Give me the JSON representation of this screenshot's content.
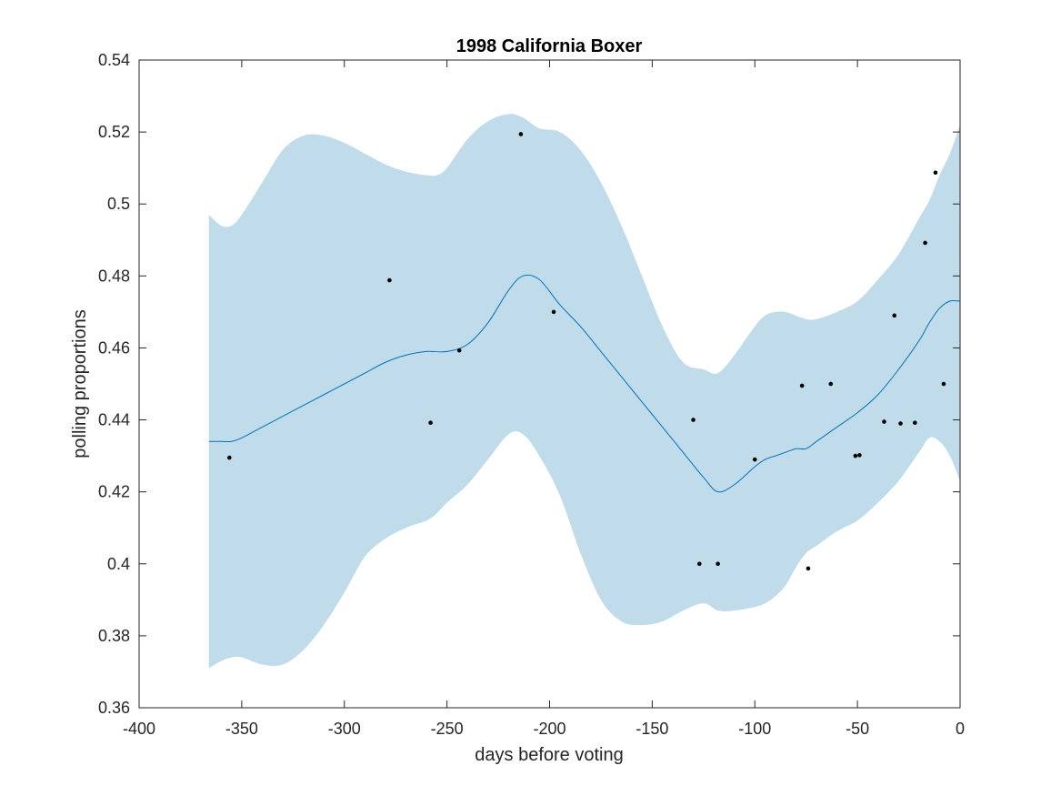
{
  "chart_data": {
    "type": "line",
    "title": "1998 California Boxer",
    "xlabel": "days before voting",
    "ylabel": "polling proportions",
    "xlim": [
      -400,
      0
    ],
    "ylim": [
      0.36,
      0.54
    ],
    "xticks": [
      -400,
      -350,
      -300,
      -250,
      -200,
      -150,
      -100,
      -50,
      0
    ],
    "xtick_labels": [
      "-400",
      "-350",
      "-300",
      "-250",
      "-200",
      "-150",
      "-100",
      "-50",
      "0"
    ],
    "yticks": [
      0.36,
      0.38,
      0.4,
      0.42,
      0.44,
      0.46,
      0.48,
      0.5,
      0.52,
      0.54
    ],
    "ytick_labels": [
      "0.36",
      "0.38",
      "0.4",
      "0.42",
      "0.44",
      "0.46",
      "0.48",
      "0.5",
      "0.52",
      "0.54"
    ],
    "grid": false,
    "colors": {
      "band": "#c0dcea",
      "mean_line": "#0072bd",
      "points": "#000000",
      "axes": "#262626"
    },
    "series": [
      {
        "kind": "confidence_band",
        "x": [
          -366,
          -360,
          -355,
          -350,
          -340,
          -330,
          -320,
          -310,
          -300,
          -290,
          -280,
          -270,
          -260,
          -255,
          -250,
          -240,
          -230,
          -220,
          -213,
          -205,
          -195,
          -185,
          -175,
          -165,
          -155,
          -145,
          -135,
          -125,
          -118,
          -110,
          -100,
          -95,
          -90,
          -85,
          -80,
          -75,
          -70,
          -60,
          -50,
          -40,
          -30,
          -20,
          -15,
          -10,
          -5,
          0
        ],
        "upper": [
          0.497,
          0.494,
          0.494,
          0.497,
          0.506,
          0.515,
          0.519,
          0.519,
          0.517,
          0.514,
          0.511,
          0.509,
          0.508,
          0.508,
          0.51,
          0.518,
          0.523,
          0.525,
          0.524,
          0.521,
          0.52,
          0.515,
          0.506,
          0.494,
          0.48,
          0.466,
          0.456,
          0.454,
          0.453,
          0.458,
          0.466,
          0.469,
          0.47,
          0.47,
          0.469,
          0.468,
          0.468,
          0.47,
          0.473,
          0.479,
          0.486,
          0.496,
          0.501,
          0.508,
          0.514,
          0.522
        ],
        "lower": [
          0.371,
          0.373,
          0.374,
          0.374,
          0.372,
          0.372,
          0.376,
          0.383,
          0.392,
          0.402,
          0.407,
          0.41,
          0.412,
          0.414,
          0.417,
          0.422,
          0.429,
          0.436,
          0.436,
          0.43,
          0.419,
          0.403,
          0.39,
          0.384,
          0.383,
          0.384,
          0.387,
          0.389,
          0.387,
          0.387,
          0.388,
          0.389,
          0.391,
          0.394,
          0.399,
          0.403,
          0.405,
          0.409,
          0.412,
          0.417,
          0.423,
          0.431,
          0.435,
          0.434,
          0.43,
          0.423
        ]
      },
      {
        "kind": "mean_line",
        "x": [
          -366,
          -360,
          -355,
          -350,
          -340,
          -330,
          -320,
          -310,
          -300,
          -290,
          -280,
          -270,
          -260,
          -250,
          -240,
          -230,
          -220,
          -213,
          -205,
          -195,
          -185,
          -175,
          -165,
          -155,
          -145,
          -135,
          -125,
          -118,
          -110,
          -100,
          -95,
          -90,
          -85,
          -80,
          -75,
          -70,
          -60,
          -50,
          -40,
          -30,
          -20,
          -15,
          -10,
          -5,
          0
        ],
        "y": [
          0.434,
          0.434,
          0.434,
          0.435,
          0.438,
          0.441,
          0.444,
          0.447,
          0.45,
          0.453,
          0.456,
          0.458,
          0.459,
          0.459,
          0.461,
          0.467,
          0.476,
          0.48,
          0.479,
          0.472,
          0.466,
          0.459,
          0.452,
          0.445,
          0.438,
          0.431,
          0.424,
          0.42,
          0.422,
          0.427,
          0.429,
          0.43,
          0.431,
          0.432,
          0.432,
          0.434,
          0.438,
          0.442,
          0.447,
          0.454,
          0.462,
          0.467,
          0.471,
          0.473,
          0.473
        ]
      },
      {
        "kind": "scatter",
        "x": [
          -356,
          -278,
          -258,
          -244,
          -214,
          -198,
          -130,
          -127,
          -118,
          -100,
          -77,
          -74,
          -63,
          -51,
          -49,
          -37,
          -32,
          -29,
          -22,
          -17,
          -12,
          -8
        ],
        "y": [
          0.4295,
          0.4788,
          0.4392,
          0.4593,
          0.5194,
          0.47,
          0.44,
          0.4,
          0.4,
          0.429,
          0.4495,
          0.3987,
          0.45,
          0.43,
          0.4302,
          0.4395,
          0.469,
          0.439,
          0.4392,
          0.4892,
          0.5087,
          0.45
        ]
      }
    ]
  }
}
